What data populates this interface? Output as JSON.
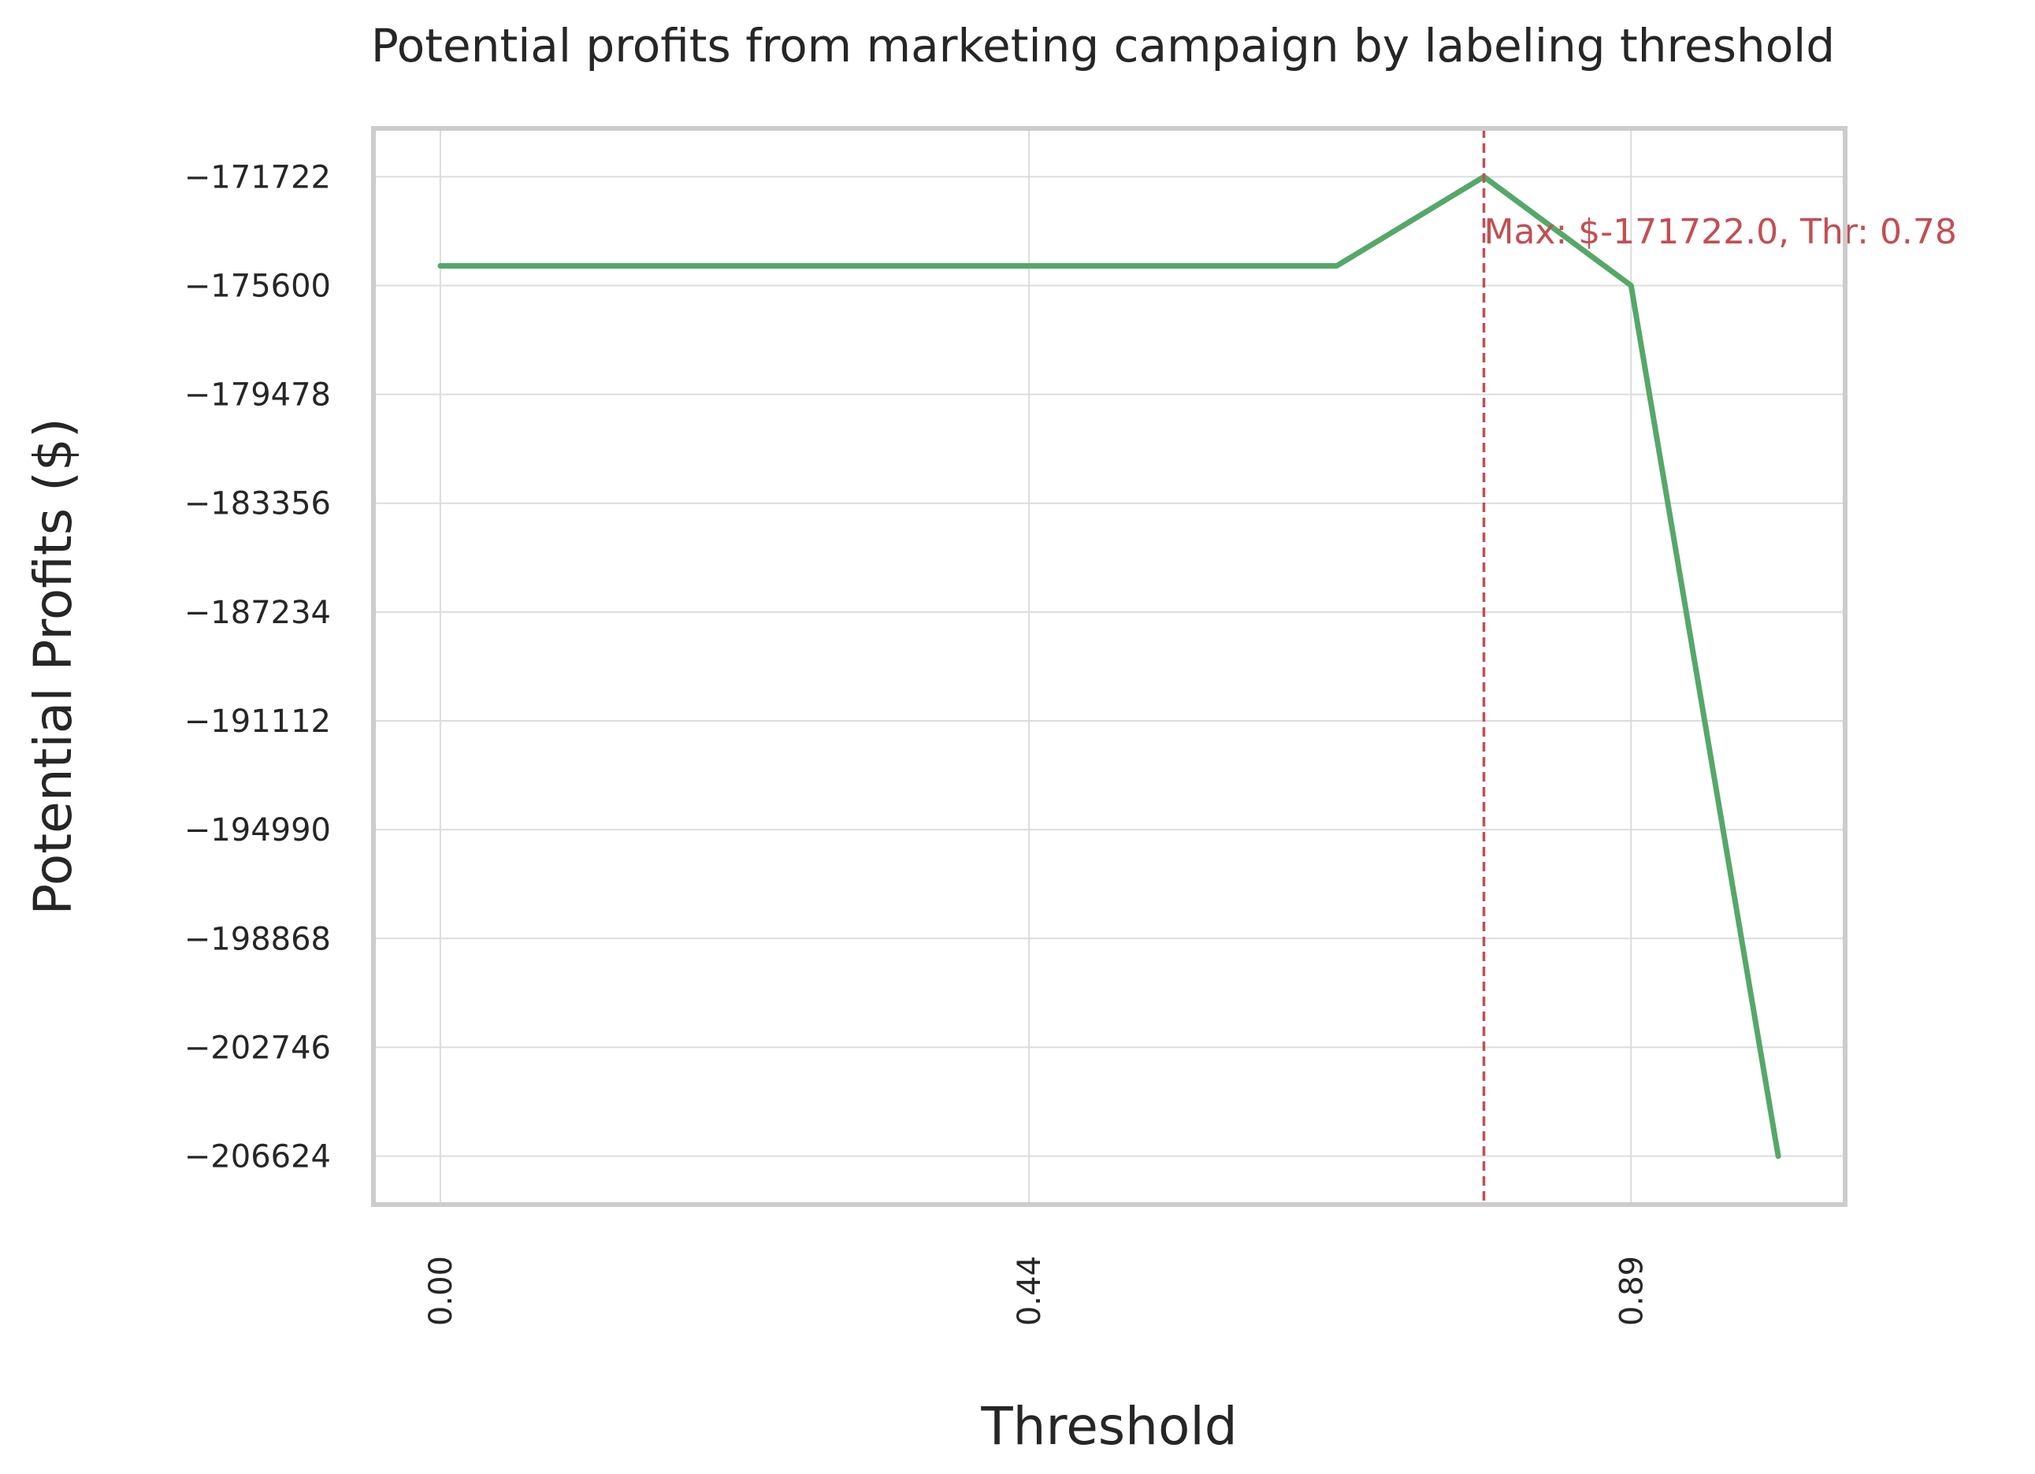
{
  "chart_data": {
    "type": "line",
    "title": "Potential profits from marketing campaign by labeling threshold",
    "xlabel": "Threshold",
    "ylabel": "Potential Profits ($)",
    "x": [
      0.0,
      0.11,
      0.22,
      0.33,
      0.44,
      0.56,
      0.67,
      0.78,
      0.89,
      1.0
    ],
    "series": [
      {
        "values": [
          -174900,
          -174900,
          -174900,
          -174900,
          -174900,
          -174900,
          -174900,
          -171722,
          -175600,
          -206624
        ]
      }
    ],
    "xticks": [
      0.0,
      0.44,
      0.89
    ],
    "xtick_labels": [
      "0.00",
      "0.44",
      "0.89"
    ],
    "yticks": [
      -171722,
      -175600,
      -179478,
      -183356,
      -187234,
      -191112,
      -194990,
      -198868,
      -202746,
      -206624
    ],
    "ytick_labels": [
      "−171722",
      "−175600",
      "−179478",
      "−183356",
      "−187234",
      "−191112",
      "−194990",
      "−198868",
      "−202746",
      "−206624"
    ],
    "xlim": [
      -0.05,
      1.05
    ],
    "ylim": [
      -208350,
      -170000
    ],
    "grid": true,
    "vline": {
      "x": 0.78
    },
    "annotation": {
      "text": "Max: $-171722.0, Thr: 0.78",
      "x": 0.78,
      "y": -174100
    },
    "colors": {
      "line": "#55a868",
      "vline": "#c44e52",
      "annotation": "#c44e52",
      "grid": "#dcdcdc",
      "frame": "#cccccc"
    }
  }
}
